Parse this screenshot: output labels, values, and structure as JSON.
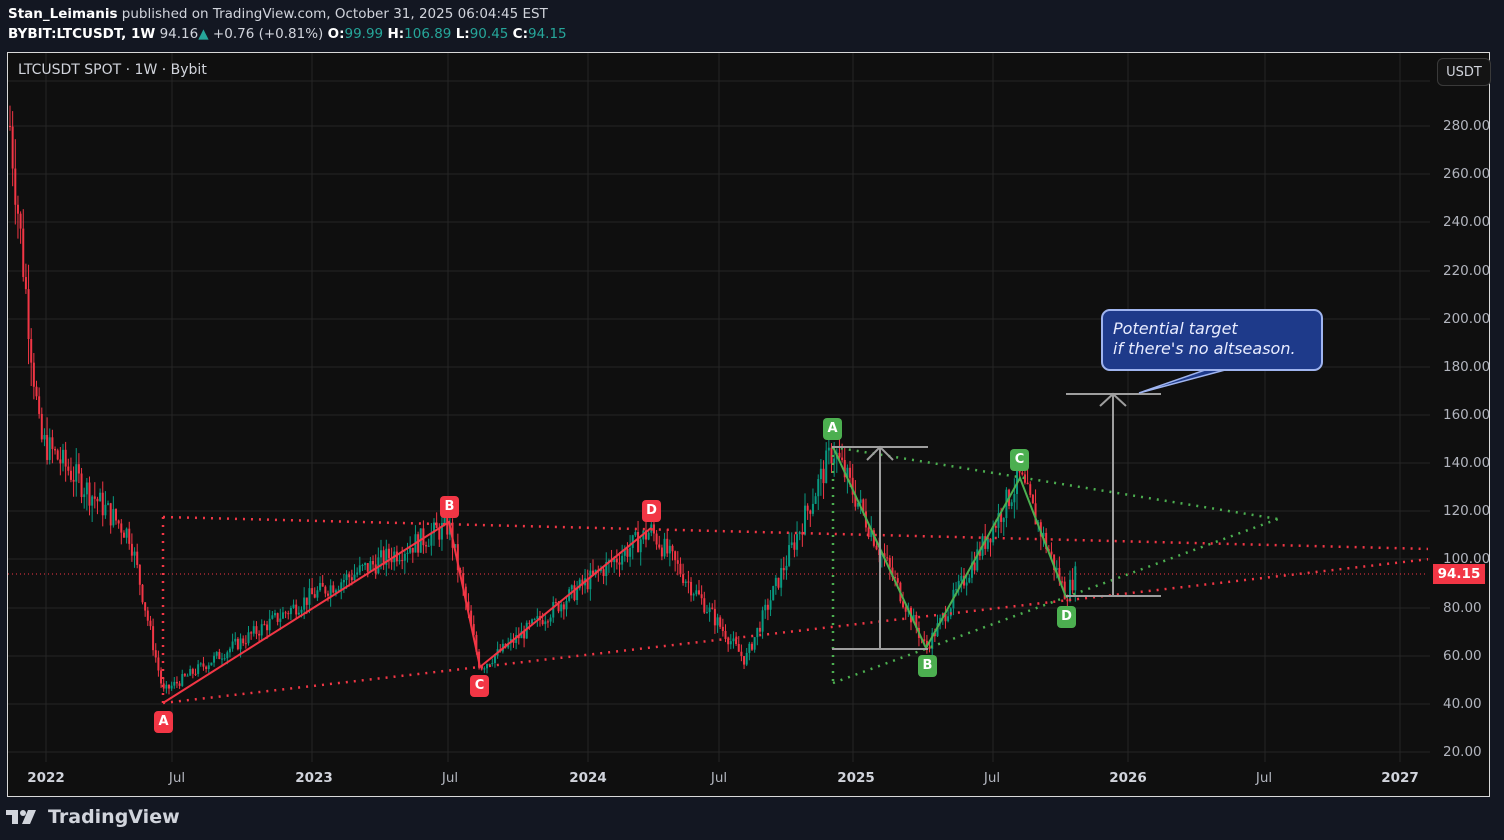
{
  "header": {
    "author": "Stan_Leimanis",
    "published_text": "published on TradingView.com, October 31, 2025 06:04:45 EST",
    "symbol": "BYBIT:LTCUSDT, 1W",
    "last": "94.16",
    "change": "+0.76 (+0.81%)",
    "o_label": "O:",
    "o": "99.99",
    "h_label": "H:",
    "h": "106.89",
    "l_label": "L:",
    "l": "90.45",
    "c_label": "C:",
    "c": "94.15"
  },
  "chart": {
    "legend": "LTCUSDT SPOT · 1W · Bybit",
    "currency_button": "USDT",
    "current_price_tag": "94.15",
    "callout": {
      "line1": "Potential target",
      "line2": "if there's no altseason."
    },
    "pattern_labels_red": [
      "A",
      "B",
      "C",
      "D"
    ],
    "pattern_labels_green": [
      "A",
      "B",
      "C",
      "D"
    ]
  },
  "footer": {
    "brand": "TradingView"
  },
  "colors": {
    "up": "#089981",
    "down": "#f23645",
    "pattern_red": "#f23645",
    "pattern_green": "#4caf50",
    "callout_bg": "#1e3a8a",
    "background": "#0f0f0f"
  },
  "chart_data": {
    "type": "candlestick",
    "title": "LTCUSDT SPOT · 1W · Bybit",
    "xlabel": "",
    "ylabel": "USDT",
    "ylim": [
      20,
      290
    ],
    "y_ticks": [
      "280.00",
      "260.00",
      "240.00",
      "220.00",
      "200.00",
      "180.00",
      "160.00",
      "140.00",
      "120.00",
      "100.00",
      "80.00",
      "60.00",
      "40.00",
      "20.00"
    ],
    "x_ticks": [
      "2022",
      "Jul",
      "2023",
      "Jul",
      "2024",
      "Jul",
      "2025",
      "Jul",
      "2026",
      "Jul",
      "2027"
    ],
    "grid": true,
    "last_price": 94.15,
    "ohlc_last": {
      "open": 99.99,
      "high": 106.89,
      "low": 90.45,
      "close": 94.15
    },
    "approx_path": [
      {
        "date": "2021-11",
        "price": 280
      },
      {
        "date": "2022-01",
        "price": 150
      },
      {
        "date": "2022-04",
        "price": 110
      },
      {
        "date": "2022-06",
        "price": 45
      },
      {
        "date": "2023-01",
        "price": 85
      },
      {
        "date": "2023-07",
        "price": 114
      },
      {
        "date": "2023-08",
        "price": 55
      },
      {
        "date": "2024-03",
        "price": 112
      },
      {
        "date": "2024-08",
        "price": 58
      },
      {
        "date": "2024-12",
        "price": 146
      },
      {
        "date": "2025-04",
        "price": 63
      },
      {
        "date": "2025-07",
        "price": 134
      },
      {
        "date": "2025-10",
        "price": 85
      },
      {
        "date": "2025-10-31",
        "price": 94.15
      }
    ],
    "annotations": [
      {
        "type": "ABCD",
        "color": "red",
        "points": {
          "A": 40,
          "B": 114,
          "C": 55,
          "D": 112
        }
      },
      {
        "type": "ABCD",
        "color": "green",
        "points": {
          "A": 146,
          "B": 63,
          "C": 134,
          "D": 85
        }
      },
      {
        "type": "measure_arrow",
        "from": 85,
        "to": 169,
        "label": "Potential target if there's no altseason."
      },
      {
        "type": "triangle",
        "color": "red",
        "style": "dotted"
      },
      {
        "type": "triangle",
        "color": "green",
        "style": "dotted"
      }
    ]
  }
}
